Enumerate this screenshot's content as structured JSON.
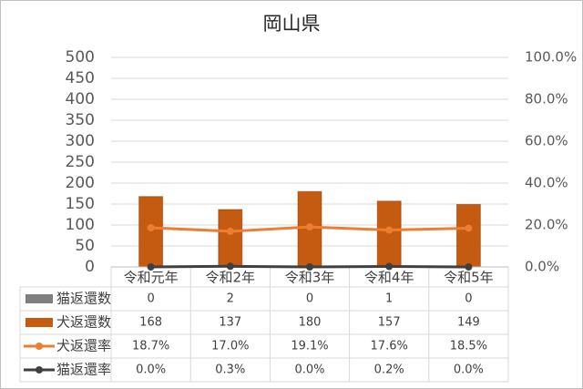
{
  "chart_data": {
    "type": "bar",
    "title": "岡山県",
    "categories": [
      "令和元年",
      "令和2年",
      "令和3年",
      "令和4年",
      "令和5年"
    ],
    "series": [
      {
        "name": "猫返還数",
        "type": "bar",
        "color": "#7f7f7f",
        "values": [
          0,
          2,
          0,
          1,
          0
        ]
      },
      {
        "name": "犬返還数",
        "type": "bar",
        "color": "#c55a11",
        "values": [
          168,
          137,
          180,
          157,
          149
        ]
      },
      {
        "name": "犬返還率",
        "type": "line",
        "axis": "y2",
        "color": "#ed7d31",
        "values": [
          18.7,
          17.0,
          19.1,
          17.6,
          18.5
        ],
        "value_labels": [
          "18.7%",
          "17.0%",
          "19.1%",
          "17.6%",
          "18.5%"
        ]
      },
      {
        "name": "猫返還率",
        "type": "line",
        "axis": "y2",
        "color": "#404040",
        "values": [
          0.0,
          0.3,
          0.0,
          0.2,
          0.0
        ],
        "value_labels": [
          "0.0%",
          "0.3%",
          "0.0%",
          "0.2%",
          "0.0%"
        ]
      }
    ],
    "ylim": [
      0,
      500
    ],
    "yticks": [
      0,
      50,
      100,
      150,
      200,
      250,
      300,
      350,
      400,
      450,
      500
    ],
    "y2lim": [
      0,
      100
    ],
    "y2ticks": [
      {
        "value": 0,
        "label": "0.0%"
      },
      {
        "value": 20,
        "label": "20.0%"
      },
      {
        "value": 40,
        "label": "40.0%"
      },
      {
        "value": 60,
        "label": "60.0%"
      },
      {
        "value": 80,
        "label": "80.0%"
      },
      {
        "value": 100,
        "label": "100.0%"
      }
    ],
    "grid": true
  }
}
